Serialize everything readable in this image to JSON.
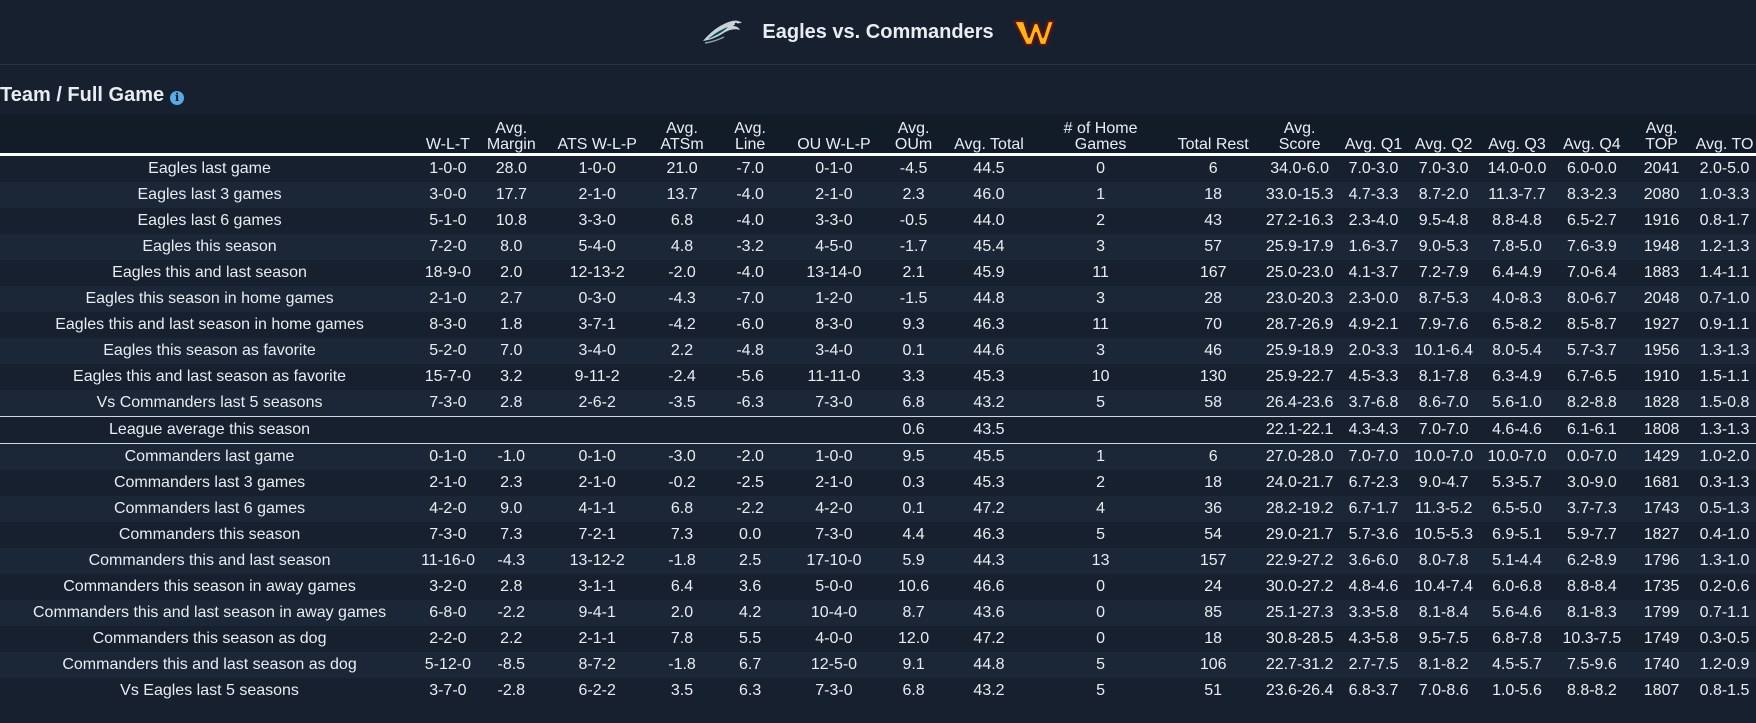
{
  "header": {
    "title": "Eagles vs. Commanders",
    "home_logo": "eagles-logo",
    "away_logo": "commanders-logo",
    "colors": {
      "eagles": "#004c54",
      "commanders_burgundy": "#5a1414",
      "commanders_gold": "#ffb612"
    }
  },
  "section": {
    "title": "Team / Full Game",
    "info_icon": "info-icon"
  },
  "table": {
    "columns": [
      "",
      "W-L-T",
      "Avg. Margin",
      "ATS W-L-P",
      "Avg. ATSm",
      "Avg. Line",
      "OU W-L-P",
      "Avg. OUm",
      "Avg. Total",
      "# of Home Games",
      "Total Rest",
      "Avg. Score",
      "Avg. Q1",
      "Avg. Q2",
      "Avg. Q3",
      "Avg. Q4",
      "Avg. TOP",
      "Avg. TO"
    ],
    "rows": [
      [
        "Eagles last game",
        "1-0-0",
        "28.0",
        "1-0-0",
        "21.0",
        "-7.0",
        "0-1-0",
        "-4.5",
        "44.5",
        "0",
        "6",
        "34.0-6.0",
        "7.0-3.0",
        "7.0-3.0",
        "14.0-0.0",
        "6.0-0.0",
        "2041",
        "2.0-5.0"
      ],
      [
        "Eagles last 3 games",
        "3-0-0",
        "17.7",
        "2-1-0",
        "13.7",
        "-4.0",
        "2-1-0",
        "2.3",
        "46.0",
        "1",
        "18",
        "33.0-15.3",
        "4.7-3.3",
        "8.7-2.0",
        "11.3-7.7",
        "8.3-2.3",
        "2080",
        "1.0-3.3"
      ],
      [
        "Eagles last 6 games",
        "5-1-0",
        "10.8",
        "3-3-0",
        "6.8",
        "-4.0",
        "3-3-0",
        "-0.5",
        "44.0",
        "2",
        "43",
        "27.2-16.3",
        "2.3-4.0",
        "9.5-4.8",
        "8.8-4.8",
        "6.5-2.7",
        "1916",
        "0.8-1.7"
      ],
      [
        "Eagles this season",
        "7-2-0",
        "8.0",
        "5-4-0",
        "4.8",
        "-3.2",
        "4-5-0",
        "-1.7",
        "45.4",
        "3",
        "57",
        "25.9-17.9",
        "1.6-3.7",
        "9.0-5.3",
        "7.8-5.0",
        "7.6-3.9",
        "1948",
        "1.2-1.3"
      ],
      [
        "Eagles this and last season",
        "18-9-0",
        "2.0",
        "12-13-2",
        "-2.0",
        "-4.0",
        "13-14-0",
        "2.1",
        "45.9",
        "11",
        "167",
        "25.0-23.0",
        "4.1-3.7",
        "7.2-7.9",
        "6.4-4.9",
        "7.0-6.4",
        "1883",
        "1.4-1.1"
      ],
      [
        "Eagles this season in home games",
        "2-1-0",
        "2.7",
        "0-3-0",
        "-4.3",
        "-7.0",
        "1-2-0",
        "-1.5",
        "44.8",
        "3",
        "28",
        "23.0-20.3",
        "2.3-0.0",
        "8.7-5.3",
        "4.0-8.3",
        "8.0-6.7",
        "2048",
        "0.7-1.0"
      ],
      [
        "Eagles this and last season in home games",
        "8-3-0",
        "1.8",
        "3-7-1",
        "-4.2",
        "-6.0",
        "8-3-0",
        "9.3",
        "46.3",
        "11",
        "70",
        "28.7-26.9",
        "4.9-2.1",
        "7.9-7.6",
        "6.5-8.2",
        "8.5-8.7",
        "1927",
        "0.9-1.1"
      ],
      [
        "Eagles this season as favorite",
        "5-2-0",
        "7.0",
        "3-4-0",
        "2.2",
        "-4.8",
        "3-4-0",
        "0.1",
        "44.6",
        "3",
        "46",
        "25.9-18.9",
        "2.0-3.3",
        "10.1-6.4",
        "8.0-5.4",
        "5.7-3.7",
        "1956",
        "1.3-1.3"
      ],
      [
        "Eagles this and last season as favorite",
        "15-7-0",
        "3.2",
        "9-11-2",
        "-2.4",
        "-5.6",
        "11-11-0",
        "3.3",
        "45.3",
        "10",
        "130",
        "25.9-22.7",
        "4.5-3.3",
        "8.1-7.8",
        "6.3-4.9",
        "6.7-6.5",
        "1910",
        "1.5-1.1"
      ],
      [
        "Vs Commanders last 5 seasons",
        "7-3-0",
        "2.8",
        "2-6-2",
        "-3.5",
        "-6.3",
        "7-3-0",
        "6.8",
        "43.2",
        "5",
        "58",
        "26.4-23.6",
        "3.7-6.8",
        "8.6-7.0",
        "5.6-1.0",
        "8.2-8.8",
        "1828",
        "1.5-0.8"
      ],
      [
        "League average this season",
        "",
        "",
        "",
        "",
        "",
        "",
        "0.6",
        "43.5",
        "",
        "",
        "22.1-22.1",
        "4.3-4.3",
        "7.0-7.0",
        "4.6-4.6",
        "6.1-6.1",
        "1808",
        "1.3-1.3"
      ],
      [
        "Commanders last game",
        "0-1-0",
        "-1.0",
        "0-1-0",
        "-3.0",
        "-2.0",
        "1-0-0",
        "9.5",
        "45.5",
        "1",
        "6",
        "27.0-28.0",
        "7.0-7.0",
        "10.0-7.0",
        "10.0-7.0",
        "0.0-7.0",
        "1429",
        "1.0-2.0"
      ],
      [
        "Commanders last 3 games",
        "2-1-0",
        "2.3",
        "2-1-0",
        "-0.2",
        "-2.5",
        "2-1-0",
        "0.3",
        "45.3",
        "2",
        "18",
        "24.0-21.7",
        "6.7-2.3",
        "9.0-4.7",
        "5.3-5.7",
        "3.0-9.0",
        "1681",
        "0.3-1.3"
      ],
      [
        "Commanders last 6 games",
        "4-2-0",
        "9.0",
        "4-1-1",
        "6.8",
        "-2.2",
        "4-2-0",
        "0.1",
        "47.2",
        "4",
        "36",
        "28.2-19.2",
        "6.7-1.7",
        "11.3-5.2",
        "6.5-5.0",
        "3.7-7.3",
        "1743",
        "0.5-1.3"
      ],
      [
        "Commanders this season",
        "7-3-0",
        "7.3",
        "7-2-1",
        "7.3",
        "0.0",
        "7-3-0",
        "4.4",
        "46.3",
        "5",
        "54",
        "29.0-21.7",
        "5.7-3.6",
        "10.5-5.3",
        "6.9-5.1",
        "5.9-7.7",
        "1827",
        "0.4-1.0"
      ],
      [
        "Commanders this and last season",
        "11-16-0",
        "-4.3",
        "13-12-2",
        "-1.8",
        "2.5",
        "17-10-0",
        "5.9",
        "44.3",
        "13",
        "157",
        "22.9-27.2",
        "3.6-6.0",
        "8.0-7.8",
        "5.1-4.4",
        "6.2-8.9",
        "1796",
        "1.3-1.0"
      ],
      [
        "Commanders this season in away games",
        "3-2-0",
        "2.8",
        "3-1-1",
        "6.4",
        "3.6",
        "5-0-0",
        "10.6",
        "46.6",
        "0",
        "24",
        "30.0-27.2",
        "4.8-4.6",
        "10.4-7.4",
        "6.0-6.8",
        "8.8-8.4",
        "1735",
        "0.2-0.6"
      ],
      [
        "Commanders this and last season in away games",
        "6-8-0",
        "-2.2",
        "9-4-1",
        "2.0",
        "4.2",
        "10-4-0",
        "8.7",
        "43.6",
        "0",
        "85",
        "25.1-27.3",
        "3.3-5.8",
        "8.1-8.4",
        "5.6-4.6",
        "8.1-8.3",
        "1799",
        "0.7-1.1"
      ],
      [
        "Commanders this season as dog",
        "2-2-0",
        "2.2",
        "2-1-1",
        "7.8",
        "5.5",
        "4-0-0",
        "12.0",
        "47.2",
        "0",
        "18",
        "30.8-28.5",
        "4.3-5.8",
        "9.5-7.5",
        "6.8-7.8",
        "10.3-7.5",
        "1749",
        "0.3-0.5"
      ],
      [
        "Commanders this and last season as dog",
        "5-12-0",
        "-8.5",
        "8-7-2",
        "-1.8",
        "6.7",
        "12-5-0",
        "9.1",
        "44.8",
        "5",
        "106",
        "22.7-31.2",
        "2.7-7.5",
        "8.1-8.2",
        "4.5-5.7",
        "7.5-9.6",
        "1740",
        "1.2-0.9"
      ],
      [
        "Vs Eagles last 5 seasons",
        "3-7-0",
        "-2.8",
        "6-2-2",
        "3.5",
        "6.3",
        "7-3-0",
        "6.8",
        "43.2",
        "5",
        "51",
        "23.6-26.4",
        "6.8-3.7",
        "7.0-8.6",
        "1.0-5.6",
        "8.8-8.2",
        "1807",
        "0.8-1.5"
      ]
    ]
  }
}
